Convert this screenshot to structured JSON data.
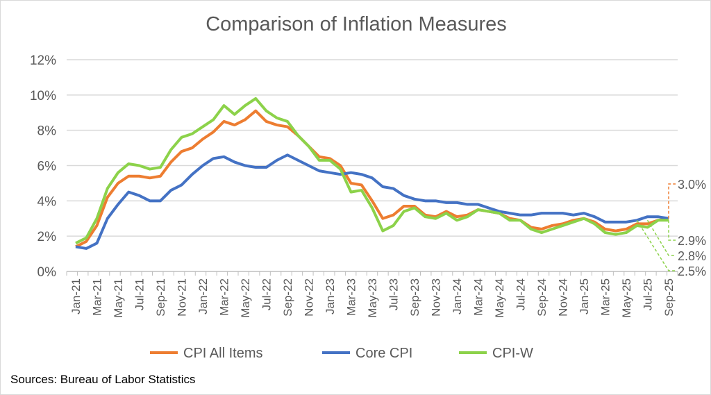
{
  "chart_data": {
    "type": "line",
    "title": "Comparison of Inflation Measures",
    "xlabel": "",
    "ylabel": "",
    "ylim": [
      0,
      12
    ],
    "yticks": [
      "0%",
      "2%",
      "4%",
      "6%",
      "8%",
      "10%",
      "12%"
    ],
    "grid": true,
    "legend": "bottom",
    "x": [
      "Jan-21",
      "Feb-21",
      "Mar-21",
      "Apr-21",
      "May-21",
      "Jun-21",
      "Jul-21",
      "Aug-21",
      "Sep-21",
      "Oct-21",
      "Nov-21",
      "Dec-21",
      "Jan-22",
      "Feb-22",
      "Mar-22",
      "Apr-22",
      "May-22",
      "Jun-22",
      "Jul-22",
      "Aug-22",
      "Sep-22",
      "Oct-22",
      "Nov-22",
      "Dec-22",
      "Jan-23",
      "Feb-23",
      "Mar-23",
      "Apr-23",
      "May-23",
      "Jun-23",
      "Jul-23",
      "Aug-23",
      "Sep-23",
      "Oct-23",
      "Nov-23",
      "Dec-23",
      "Jan-24",
      "Feb-24",
      "Mar-24",
      "Apr-24",
      "May-24",
      "Jun-24",
      "Jul-24",
      "Aug-24",
      "Sep-24",
      "Oct-24",
      "Nov-24",
      "Dec-24",
      "Jan-25",
      "Feb-25",
      "Mar-25",
      "Apr-25",
      "May-25",
      "Jun-25",
      "Jul-25",
      "Aug-25",
      "Sep-25"
    ],
    "series": [
      {
        "name": "CPI All Items",
        "color": "#ED7D31",
        "values": [
          1.4,
          1.7,
          2.6,
          4.2,
          5.0,
          5.4,
          5.4,
          5.3,
          5.4,
          6.2,
          6.8,
          7.0,
          7.5,
          7.9,
          8.5,
          8.3,
          8.6,
          9.1,
          8.5,
          8.3,
          8.2,
          7.7,
          7.1,
          6.5,
          6.4,
          6.0,
          5.0,
          4.9,
          4.0,
          3.0,
          3.2,
          3.7,
          3.7,
          3.2,
          3.1,
          3.4,
          3.1,
          3.2,
          3.5,
          3.4,
          3.3,
          3.0,
          2.9,
          2.5,
          2.4,
          2.6,
          2.7,
          2.9,
          3.0,
          2.8,
          2.4,
          2.3,
          2.4,
          2.7,
          2.7,
          2.9,
          3.0
        ]
      },
      {
        "name": "Core CPI",
        "color": "#4472C4",
        "values": [
          1.4,
          1.3,
          1.6,
          3.0,
          3.8,
          4.5,
          4.3,
          4.0,
          4.0,
          4.6,
          4.9,
          5.5,
          6.0,
          6.4,
          6.5,
          6.2,
          6.0,
          5.9,
          5.9,
          6.3,
          6.6,
          6.3,
          6.0,
          5.7,
          5.6,
          5.5,
          5.6,
          5.5,
          5.3,
          4.8,
          4.7,
          4.3,
          4.1,
          4.0,
          4.0,
          3.9,
          3.9,
          3.8,
          3.8,
          3.6,
          3.4,
          3.3,
          3.2,
          3.2,
          3.3,
          3.3,
          3.3,
          3.2,
          3.3,
          3.1,
          2.8,
          2.8,
          2.8,
          2.9,
          3.1,
          3.1,
          3.0
        ]
      },
      {
        "name": "CPI-W",
        "color": "#8CD24A",
        "values": [
          1.6,
          1.9,
          3.0,
          4.7,
          5.6,
          6.1,
          6.0,
          5.8,
          5.9,
          6.9,
          7.6,
          7.8,
          8.2,
          8.6,
          9.4,
          8.9,
          9.4,
          9.8,
          9.1,
          8.7,
          8.5,
          7.7,
          7.1,
          6.3,
          6.3,
          5.8,
          4.5,
          4.6,
          3.6,
          2.3,
          2.6,
          3.4,
          3.6,
          3.1,
          3.0,
          3.3,
          2.9,
          3.1,
          3.5,
          3.4,
          3.3,
          2.9,
          2.9,
          2.4,
          2.2,
          2.4,
          2.6,
          2.8,
          3.0,
          2.7,
          2.2,
          2.1,
          2.2,
          2.6,
          2.5,
          2.9,
          2.9
        ]
      }
    ],
    "annotations": [
      {
        "text": "3.0%",
        "color": "#ED7D31"
      },
      {
        "text": "2.9%",
        "color": "#8CD24A"
      },
      {
        "text": "2.8%",
        "color": "#8CD24A"
      },
      {
        "text": "2.5%",
        "color": "#8CD24A"
      }
    ]
  },
  "footer": {
    "sources": "Sources: Bureau of Labor Statistics"
  }
}
